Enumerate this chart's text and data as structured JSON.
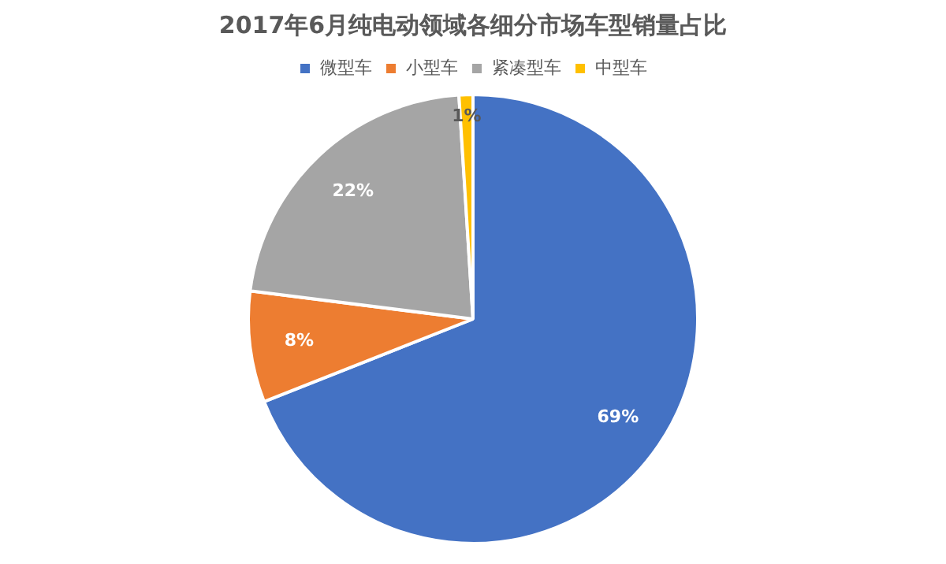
{
  "chart_data": {
    "type": "pie",
    "title": "2017年6月纯电动领域各细分市场车型销量占比",
    "categories": [
      "微型车",
      "小型车",
      "紧凑型车",
      "中型车"
    ],
    "values": [
      69,
      8,
      22,
      1
    ],
    "colors": [
      "#4472c4",
      "#ed7d31",
      "#a5a5a5",
      "#ffc000"
    ],
    "value_labels": [
      "69%",
      "8%",
      "22%",
      "1%"
    ],
    "legend": "top"
  }
}
